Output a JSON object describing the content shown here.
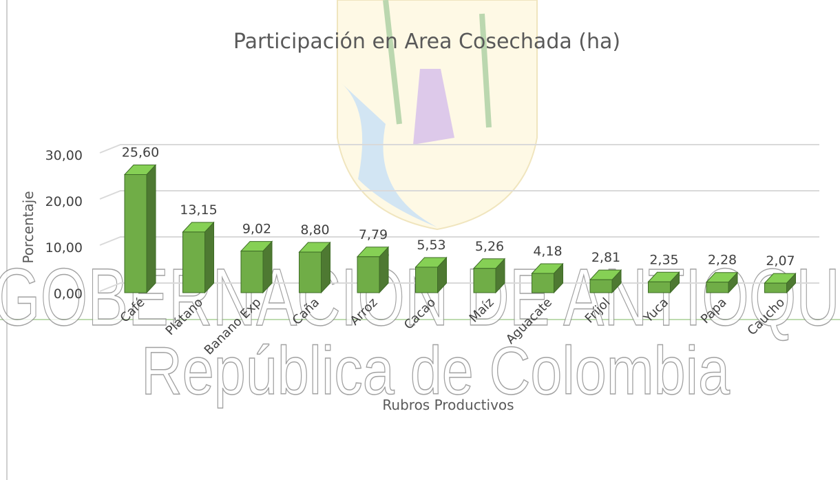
{
  "chart_data": {
    "type": "bar3d",
    "title": "Participación en Area Cosechada (ha)",
    "ylabel": "Porcentaje",
    "xlabel": "Rubros Productivos",
    "categories": [
      "Café",
      "Plátano",
      "Banano Exp",
      "Caña",
      "Arroz",
      "Cacao",
      "Maíz",
      "Aguacate",
      "Fríjol",
      "Yuca",
      "Papa",
      "Caucho"
    ],
    "values": [
      25.6,
      13.15,
      9.02,
      8.8,
      7.79,
      5.53,
      5.26,
      4.18,
      2.81,
      2.35,
      2.28,
      2.07
    ],
    "value_labels": [
      "25,60",
      "13,15",
      "9,02",
      "8,80",
      "7,79",
      "5,53",
      "5,26",
      "4,18",
      "2,81",
      "2,35",
      "2,28",
      "2,07"
    ],
    "color": "#70ad47",
    "ylim": [
      0,
      30
    ],
    "yticks": [
      {
        "value": 0,
        "label": "0,00"
      },
      {
        "value": 10,
        "label": "10,00"
      },
      {
        "value": 20,
        "label": "20,00"
      },
      {
        "value": 30,
        "label": "30,00"
      }
    ],
    "grid": true
  },
  "watermark": {
    "line1": "GOBERNACIÓN DE ANTIOQU",
    "line2": "República de Colombia"
  }
}
